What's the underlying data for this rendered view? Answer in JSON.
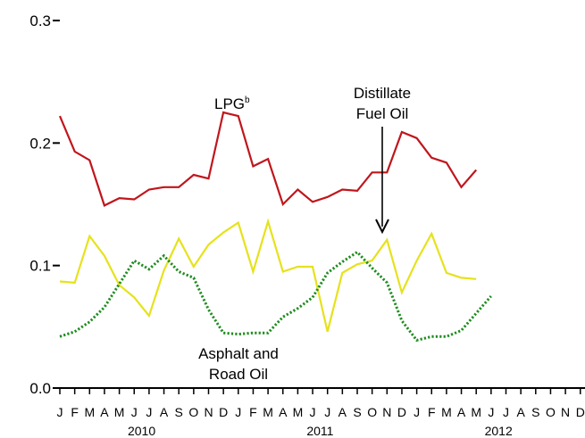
{
  "chart_data": {
    "type": "line",
    "title": "",
    "xlabel": "",
    "ylabel": "",
    "ylim": [
      0,
      0.3
    ],
    "yticks": [
      {
        "value": 0.0,
        "label": "0.0"
      },
      {
        "value": 0.1,
        "label": "0.1"
      },
      {
        "value": 0.2,
        "label": "0.2"
      },
      {
        "value": 0.3,
        "label": "0.3"
      }
    ],
    "month_labels": [
      "J",
      "F",
      "M",
      "A",
      "M",
      "J",
      "J",
      "A",
      "S",
      "O",
      "N",
      "D",
      "J",
      "F",
      "M",
      "A",
      "M",
      "J",
      "J",
      "A",
      "S",
      "O",
      "N",
      "D",
      "J",
      "F",
      "M",
      "A",
      "M",
      "J",
      "J",
      "A",
      "S",
      "O",
      "N",
      "D"
    ],
    "year_labels": [
      {
        "label": "2010",
        "month_index": 5.5
      },
      {
        "label": "2011",
        "month_index": 17.5
      },
      {
        "label": "2012",
        "month_index": 29.5
      }
    ],
    "series": [
      {
        "label": "LPG",
        "label_sup": "b",
        "color": "#c0161c",
        "style": "solid",
        "values": [
          0.222,
          0.193,
          0.186,
          0.149,
          0.155,
          0.154,
          0.162,
          0.164,
          0.164,
          0.174,
          0.171,
          0.225,
          0.222,
          0.181,
          0.187,
          0.15,
          0.162,
          0.152,
          0.156,
          0.162,
          0.161,
          0.176,
          0.176,
          0.209,
          0.204,
          0.188,
          0.184,
          0.164,
          0.178
        ]
      },
      {
        "label": "Distillate Fuel Oil",
        "color": "#e6e21c",
        "style": "solid",
        "values": [
          0.087,
          0.086,
          0.124,
          0.108,
          0.084,
          0.074,
          0.059,
          0.096,
          0.122,
          0.099,
          0.117,
          0.127,
          0.135,
          0.095,
          0.136,
          0.095,
          0.099,
          0.099,
          0.046,
          0.094,
          0.101,
          0.104,
          0.121,
          0.078,
          0.104,
          0.126,
          0.094,
          0.09,
          0.089
        ]
      },
      {
        "label": "Asphalt and Road Oil",
        "color": "#1e8c1e",
        "style": "dotted",
        "values": [
          0.042,
          0.046,
          0.054,
          0.066,
          0.085,
          0.104,
          0.097,
          0.108,
          0.095,
          0.09,
          0.064,
          0.045,
          0.044,
          0.045,
          0.045,
          0.058,
          0.065,
          0.074,
          0.094,
          0.103,
          0.111,
          0.098,
          0.086,
          0.055,
          0.039,
          0.042,
          0.042,
          0.047,
          0.061,
          0.075
        ]
      }
    ],
    "annotations": [
      {
        "text": "Distillate Fuel Oil",
        "lines": [
          "Distillate",
          "Fuel Oil"
        ],
        "arrow_to_month_index": 21.5
      }
    ]
  }
}
